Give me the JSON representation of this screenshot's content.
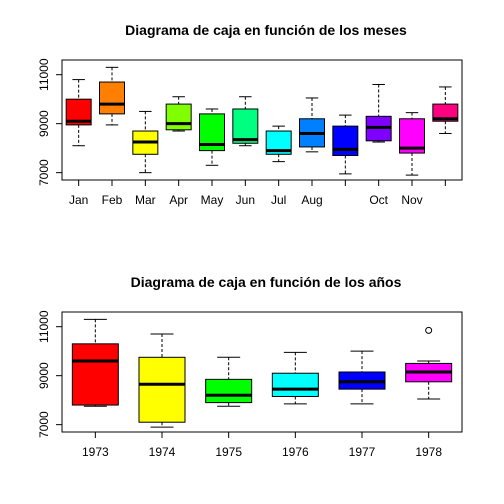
{
  "chart_data": [
    {
      "type": "boxplot",
      "title": "Diagrama de caja en función de los meses",
      "xlabel": "",
      "ylabel": "",
      "ylim": [
        6700,
        11600
      ],
      "yticks": [
        7000,
        9000,
        11000
      ],
      "x_tick_labels": [
        "Jan",
        "Feb",
        "Mar",
        "Apr",
        "May",
        "Jun",
        "Jul",
        "Aug",
        "",
        "Oct",
        "Nov",
        ""
      ],
      "boxes": [
        {
          "color": "#FF0000",
          "min": 8100,
          "q1": 8950,
          "median": 9100,
          "q3": 10000,
          "max": 10800
        },
        {
          "color": "#FF8000",
          "min": 8950,
          "q1": 9400,
          "median": 9800,
          "q3": 10700,
          "max": 11300
        },
        {
          "color": "#FFFF00",
          "min": 7000,
          "q1": 7750,
          "median": 8250,
          "q3": 8700,
          "max": 9500
        },
        {
          "color": "#80FF00",
          "min": 8700,
          "q1": 8750,
          "median": 9000,
          "q3": 9800,
          "max": 10100
        },
        {
          "color": "#00FF00",
          "min": 7300,
          "q1": 7900,
          "median": 8150,
          "q3": 9400,
          "max": 9600
        },
        {
          "color": "#00FF80",
          "min": 8100,
          "q1": 8200,
          "median": 8350,
          "q3": 9600,
          "max": 10100
        },
        {
          "color": "#00FFFF",
          "min": 7450,
          "q1": 7750,
          "median": 7900,
          "q3": 8700,
          "max": 8900
        },
        {
          "color": "#0080FF",
          "min": 7850,
          "q1": 8050,
          "median": 8600,
          "q3": 9200,
          "max": 10050
        },
        {
          "color": "#0000FF",
          "min": 6950,
          "q1": 7700,
          "median": 7950,
          "q3": 8900,
          "max": 9350
        },
        {
          "color": "#8000FF",
          "min": 8250,
          "q1": 8300,
          "median": 8850,
          "q3": 9300,
          "max": 10600
        },
        {
          "color": "#FF00FF",
          "min": 6900,
          "q1": 7800,
          "median": 8000,
          "q3": 9200,
          "max": 9450
        },
        {
          "color": "#FF0080",
          "min": 8600,
          "q1": 9100,
          "median": 9200,
          "q3": 9800,
          "max": 10500
        }
      ]
    },
    {
      "type": "boxplot",
      "title": "Diagrama de caja en función de los años",
      "xlabel": "",
      "ylabel": "",
      "ylim": [
        6700,
        11600
      ],
      "yticks": [
        7000,
        9000,
        11000
      ],
      "x_tick_labels": [
        "1973",
        "1974",
        "1975",
        "1976",
        "1977",
        "1978"
      ],
      "boxes": [
        {
          "color": "#FF0000",
          "min": 7750,
          "q1": 7800,
          "median": 9600,
          "q3": 10300,
          "max": 11300
        },
        {
          "color": "#FFFF00",
          "min": 6900,
          "q1": 7100,
          "median": 8650,
          "q3": 9750,
          "max": 10700
        },
        {
          "color": "#00FF00",
          "min": 7750,
          "q1": 7900,
          "median": 8200,
          "q3": 8850,
          "max": 9750
        },
        {
          "color": "#00FFFF",
          "min": 7850,
          "q1": 8150,
          "median": 8450,
          "q3": 9100,
          "max": 9950
        },
        {
          "color": "#0000FF",
          "min": 7850,
          "q1": 8450,
          "median": 8750,
          "q3": 9150,
          "max": 10000
        },
        {
          "color": "#FF00FF",
          "min": 8050,
          "q1": 8750,
          "median": 9150,
          "q3": 9500,
          "max": 9600,
          "outliers": [
            10850
          ]
        }
      ]
    }
  ]
}
